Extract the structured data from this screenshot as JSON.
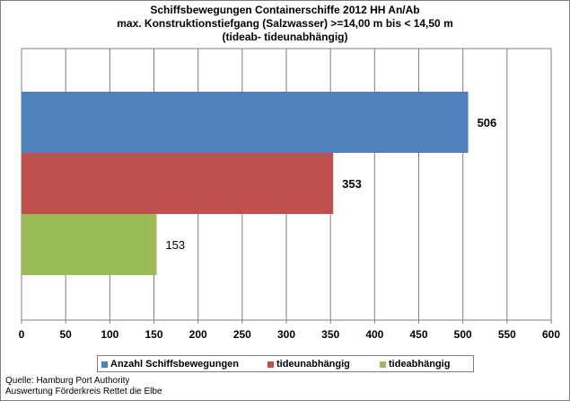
{
  "chart_data": {
    "type": "bar",
    "orientation": "horizontal",
    "title_lines": [
      "Schiffsbewegungen  Containerschiffe  2012 HH An/Ab",
      "max. Konstruktionstiefgang  (Salzwasser)  >=14,00 m bis < 14,50 m",
      "(tideab- tideunabhängig)"
    ],
    "xlim": [
      0,
      600
    ],
    "xticks": [
      0,
      50,
      100,
      150,
      200,
      250,
      300,
      350,
      400,
      450,
      500,
      550,
      600
    ],
    "grid": true,
    "legend_position": "bottom",
    "series": [
      {
        "name": "Anzahl Schiffsbewegungen",
        "value": 506,
        "label": "506",
        "color": "#4f81bd",
        "label_bold": true
      },
      {
        "name": "tideunabhängig",
        "value": 353,
        "label": "353",
        "color": "#c0504d",
        "label_bold": true
      },
      {
        "name": "tideabhängig",
        "value": 153,
        "label": "153",
        "color": "#9bbb59",
        "label_bold": false
      }
    ]
  },
  "source_lines": [
    "Quelle: Hamburg Port Authority",
    "Auswertung Förderkreis Rettet die Elbe"
  ]
}
